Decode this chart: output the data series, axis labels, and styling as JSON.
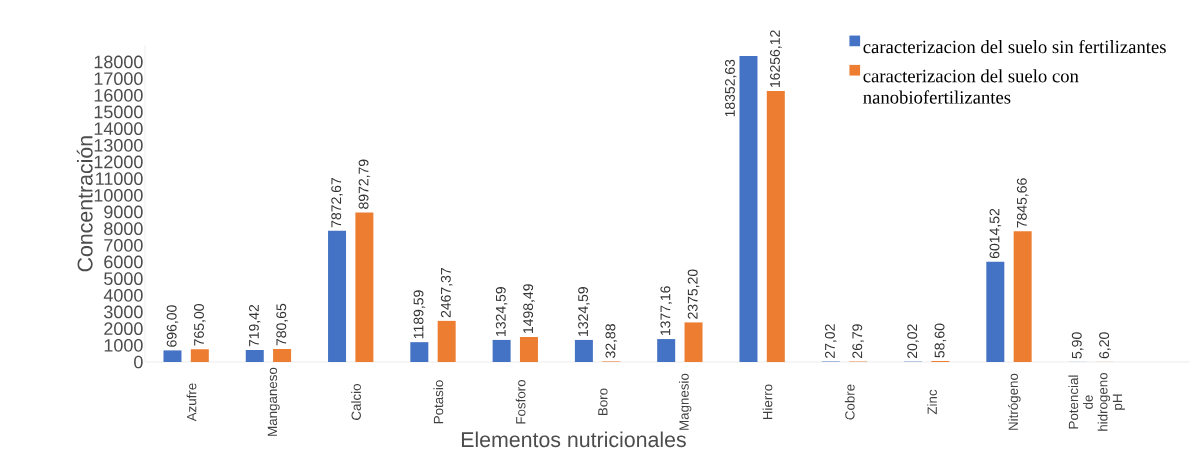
{
  "chart_data": {
    "type": "bar",
    "xlabel": "Elementos nutricionales",
    "ylabel": "Concentración",
    "categories": [
      "Azufre",
      "Manganeso",
      "Calcio",
      "Potasio",
      "Fosforo",
      "Boro",
      "Magnesio",
      "Hierro",
      "Cobre",
      "Zinc",
      "Nitrógeno",
      "Potencial de hidrogeno pH"
    ],
    "series": [
      {
        "name": "caracterizacion del suelo sin  fertilizantes",
        "color": "#4472c4",
        "values": [
          696.0,
          719.42,
          7872.67,
          1189.59,
          1324.59,
          1324.59,
          1377.16,
          18352.63,
          27.02,
          20.02,
          6014.52,
          5.9
        ],
        "value_labels": [
          "696,00",
          "719,42",
          "7872,67",
          "1189,59",
          "1324,59",
          "1324,59",
          "1377,16",
          "18352,63",
          "27,02",
          "20,02",
          "6014,52",
          "5,90"
        ]
      },
      {
        "name": "caracterizacion del suelo con nanobiofertilizantes",
        "color": "#ed7d31",
        "values": [
          765.0,
          780.65,
          8972.79,
          2467.37,
          1498.49,
          32.88,
          2375.2,
          16256.12,
          26.79,
          58.6,
          7845.66,
          6.2
        ],
        "value_labels": [
          "765,00",
          "780,65",
          "8972,79",
          "2467,37",
          "1498,49",
          "32,88",
          "2375,20",
          "16256,12",
          "26,79",
          "58,60",
          "7845,66",
          "6,20"
        ]
      }
    ],
    "ylim": [
      0,
      19000
    ],
    "yticks": [
      0,
      1000,
      2000,
      3000,
      4000,
      5000,
      6000,
      7000,
      8000,
      9000,
      10000,
      11000,
      12000,
      13000,
      14000,
      15000,
      16000,
      17000,
      18000
    ],
    "legend": "top right"
  }
}
